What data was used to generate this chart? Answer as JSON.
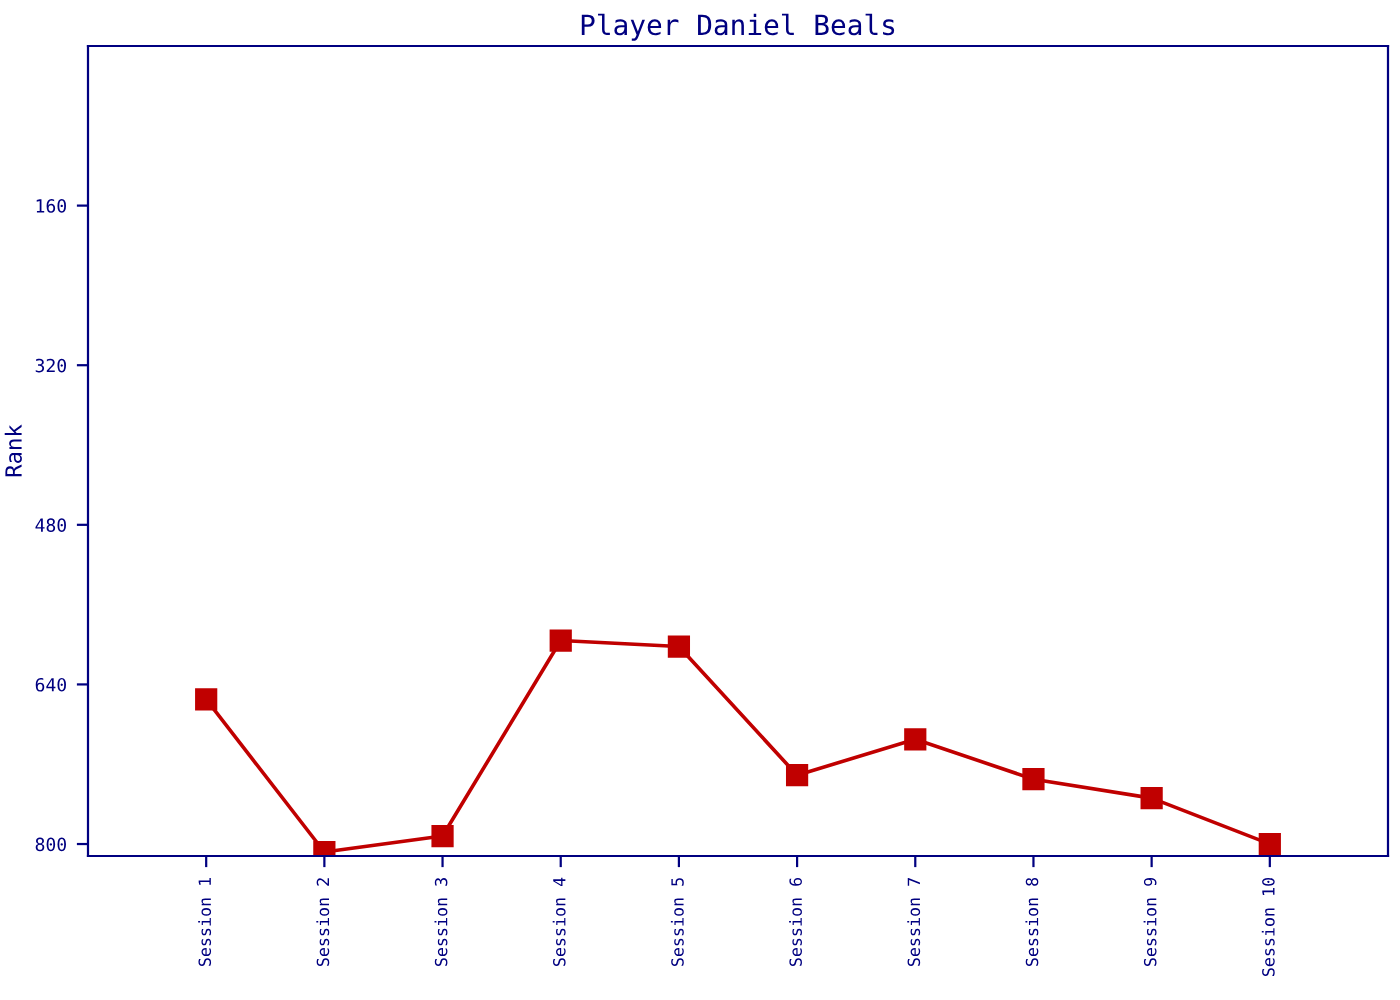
{
  "chart_data": {
    "type": "line",
    "title": "Player Daniel Beals",
    "ylabel": "Rank",
    "categories": [
      "Session 1",
      "Session 2",
      "Session 3",
      "Session 4",
      "Session 5",
      "Session 6",
      "Session 7",
      "Session 8",
      "Session 9",
      "Session 10"
    ],
    "series": [
      {
        "color": "#c00000",
        "values": [
          655,
          808,
          792,
          596,
          602,
          731,
          695,
          735,
          754,
          800
        ]
      }
    ],
    "ylim": [
      812,
      0
    ],
    "yticks": [
      160,
      320,
      480,
      640,
      800
    ],
    "grid": false,
    "legend": false,
    "marker": "square",
    "line_style": "solid"
  }
}
